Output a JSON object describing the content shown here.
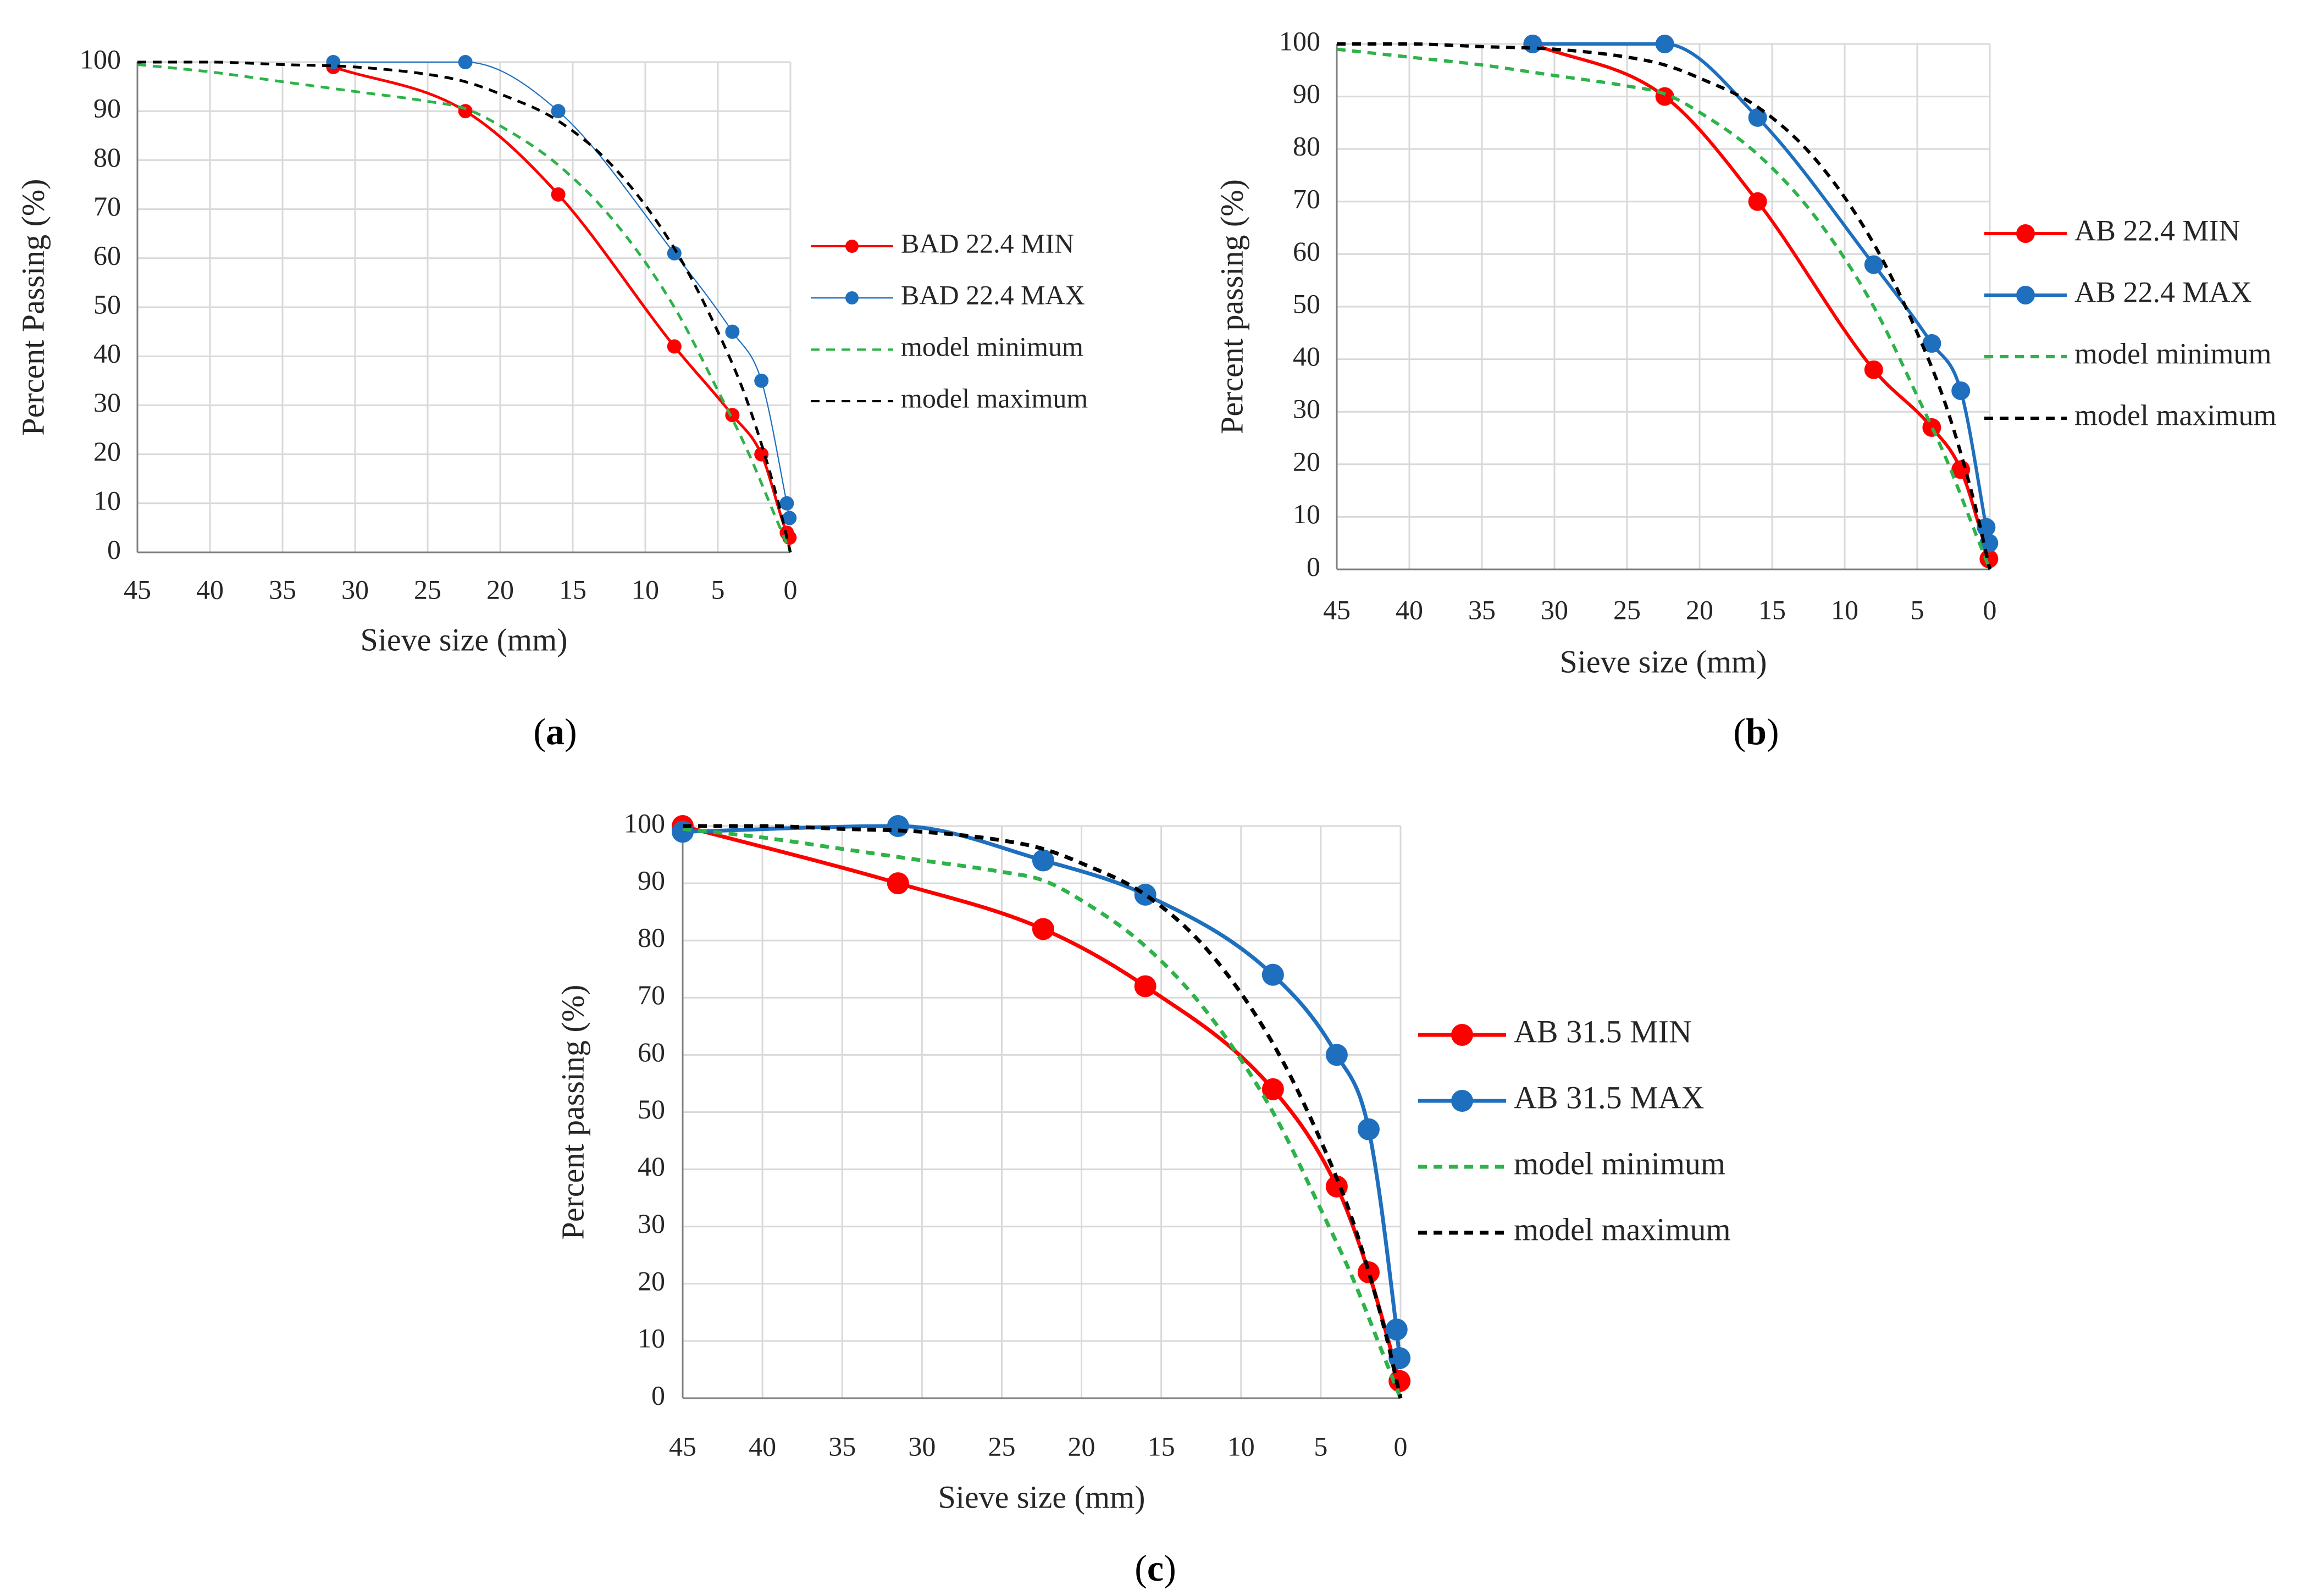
{
  "figure": {
    "colors": {
      "min": "#ff0000",
      "max": "#1f6fbf",
      "model_min": "#2eb24a",
      "model_max": "#000000"
    }
  },
  "chart_data": [
    {
      "type": "line",
      "panel_label": "a",
      "xlabel": "Sieve size (mm)",
      "ylabel": "Percent Passing  (%)",
      "xlim": [
        45,
        0
      ],
      "ylim": [
        0,
        100
      ],
      "x_ticks": [
        45,
        40,
        35,
        30,
        25,
        20,
        15,
        10,
        5,
        0
      ],
      "y_ticks": [
        0,
        10,
        20,
        30,
        40,
        50,
        60,
        70,
        80,
        90,
        100
      ],
      "legend_position": "right",
      "series": [
        {
          "name": "BAD 22.4 MIN",
          "kind": "measured",
          "color": "#ff0000",
          "x": [
            31.5,
            22.4,
            16,
            8,
            4,
            2,
            0.25,
            0.063
          ],
          "y": [
            99,
            90,
            73,
            42,
            28,
            20,
            4,
            3
          ]
        },
        {
          "name": "BAD 22.4 MAX",
          "kind": "measured",
          "color": "#1f6fbf",
          "x": [
            31.5,
            22.4,
            16,
            8,
            4,
            2,
            0.25,
            0.063
          ],
          "y": [
            100,
            100,
            90,
            61,
            45,
            35,
            10,
            7
          ]
        },
        {
          "name": "model minimum",
          "kind": "model",
          "color": "#2eb24a",
          "x": [
            45,
            40,
            35,
            30,
            25,
            22.4,
            20,
            16,
            12,
            8,
            5,
            3,
            1,
            0
          ],
          "y": [
            99.5,
            98,
            96,
            94,
            92,
            90.5,
            87,
            79,
            67,
            50,
            33,
            21,
            7,
            0
          ]
        },
        {
          "name": "model maximum",
          "kind": "model",
          "color": "#000000",
          "x": [
            45,
            40,
            35,
            30,
            25,
            22.4,
            20,
            16,
            12,
            8,
            5,
            3,
            1,
            0
          ],
          "y": [
            100,
            100,
            99.5,
            99,
            97.5,
            96,
            93.5,
            88,
            78,
            62,
            45,
            31,
            12,
            0
          ]
        }
      ]
    },
    {
      "type": "line",
      "panel_label": "b",
      "xlabel": "Sieve size (mm)",
      "ylabel": "Percent passing (%)",
      "xlim": [
        45,
        0
      ],
      "ylim": [
        0,
        100
      ],
      "x_ticks": [
        45,
        40,
        35,
        30,
        25,
        20,
        15,
        10,
        5,
        0
      ],
      "y_ticks": [
        0,
        10,
        20,
        30,
        40,
        50,
        60,
        70,
        80,
        90,
        100
      ],
      "legend_position": "right",
      "series": [
        {
          "name": "AB 22.4 MIN",
          "kind": "measured",
          "color": "#ff0000",
          "x": [
            31.5,
            22.4,
            16,
            8,
            4,
            2,
            0.063
          ],
          "y": [
            100,
            90,
            70,
            38,
            27,
            19,
            2
          ]
        },
        {
          "name": "AB 22.4 MAX",
          "kind": "measured",
          "color": "#1f6fbf",
          "x": [
            31.5,
            22.4,
            16,
            8,
            4,
            2,
            0.25,
            0.063
          ],
          "y": [
            100,
            100,
            86,
            58,
            43,
            34,
            8,
            5
          ]
        },
        {
          "name": "model minimum",
          "kind": "model",
          "color": "#2eb24a",
          "x": [
            45,
            40,
            35,
            30,
            25,
            22.4,
            20,
            16,
            12,
            8,
            5,
            3,
            1,
            0
          ],
          "y": [
            99,
            97.5,
            96,
            94,
            92,
            90.5,
            87,
            79,
            67,
            50,
            33,
            21,
            7,
            0
          ]
        },
        {
          "name": "model maximum",
          "kind": "model",
          "color": "#000000",
          "x": [
            45,
            40,
            35,
            30,
            25,
            22.4,
            20,
            16,
            12,
            8,
            5,
            3,
            1,
            0
          ],
          "y": [
            100,
            100,
            99.5,
            99,
            97.5,
            96,
            93.5,
            88,
            78,
            62,
            45,
            31,
            12,
            0
          ]
        }
      ]
    },
    {
      "type": "line",
      "panel_label": "c",
      "xlabel": "Sieve size (mm)",
      "ylabel": "Percent passing (%)",
      "xlim": [
        45,
        0
      ],
      "ylim": [
        0,
        100
      ],
      "x_ticks": [
        45,
        40,
        35,
        30,
        25,
        20,
        15,
        10,
        5,
        0
      ],
      "y_ticks": [
        0,
        10,
        20,
        30,
        40,
        50,
        60,
        70,
        80,
        90,
        100
      ],
      "legend_position": "right",
      "series": [
        {
          "name": "AB 31.5 MIN",
          "kind": "measured",
          "color": "#ff0000",
          "x": [
            45,
            31.5,
            22.4,
            16,
            8,
            4,
            2,
            0.063
          ],
          "y": [
            100,
            90,
            82,
            72,
            54,
            37,
            22,
            3
          ]
        },
        {
          "name": "AB 31.5 MAX",
          "kind": "measured",
          "color": "#1f6fbf",
          "x": [
            45,
            31.5,
            22.4,
            16,
            8,
            4,
            2,
            0.063,
            0.25
          ],
          "y": [
            99,
            100,
            94,
            88,
            74,
            60,
            47,
            7,
            12
          ]
        },
        {
          "name": "model minimum",
          "kind": "model",
          "color": "#2eb24a",
          "x": [
            45,
            40,
            35,
            30,
            25,
            22.4,
            20,
            16,
            12,
            8,
            5,
            3,
            1,
            0
          ],
          "y": [
            99.5,
            98,
            96,
            94,
            92,
            90.5,
            87,
            79,
            67,
            50,
            33,
            21,
            7,
            0
          ]
        },
        {
          "name": "model maximum",
          "kind": "model",
          "color": "#000000",
          "x": [
            45,
            40,
            35,
            30,
            25,
            22.4,
            20,
            16,
            12,
            8,
            5,
            3,
            1,
            0
          ],
          "y": [
            100,
            100,
            99.5,
            99,
            97.5,
            96,
            93.5,
            88,
            78,
            62,
            45,
            31,
            12,
            0
          ]
        }
      ]
    }
  ]
}
